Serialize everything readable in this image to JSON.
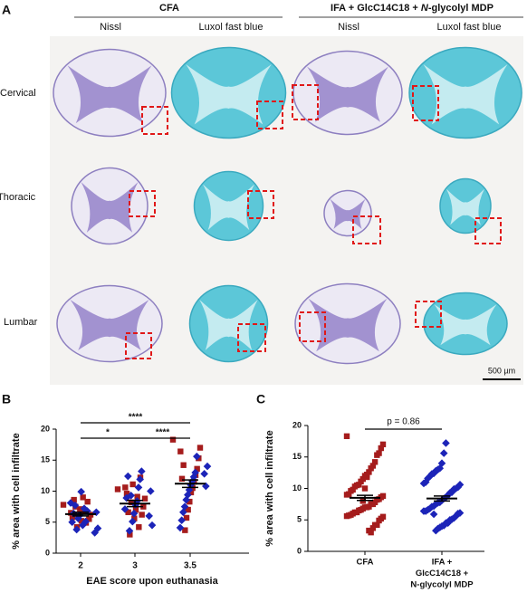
{
  "panel_labels": [
    "A",
    "B",
    "C"
  ],
  "panel_a": {
    "groups": [
      {
        "title": [
          "CFA"
        ]
      },
      {
        "title": [
          "IFA + GlcC14C18 + ",
          "N",
          "-glycolyl MDP"
        ]
      }
    ],
    "columns": [
      "Nissl",
      "Luxol fast blue",
      "Nissl",
      "Luxol fast blue"
    ],
    "rows": [
      "Cervical",
      "Thoracic",
      "Lumbar"
    ],
    "scale_bar": "500 µm"
  },
  "chart_data": [
    {
      "type": "strip",
      "ylabel": "% area with cell infiltrate",
      "xlabel": "EAE score upon euthanasia",
      "categories": [
        "2",
        "3",
        "3.5"
      ],
      "ylim": [
        0,
        20
      ],
      "yticks": [
        0,
        5,
        10,
        15,
        20
      ],
      "series": [
        {
          "color": "#a51c1c",
          "marker": "square",
          "values": [
            [
              7.8,
              6.2,
              5.5,
              8.3,
              4.9,
              6.8,
              9.0,
              5.2,
              7.1,
              6.0,
              4.2,
              7.5,
              8.6,
              5.8,
              6.5
            ],
            [
              10.3,
              8.8,
              7.5,
              6.2,
              12.2,
              4.2,
              9.1,
              7.0,
              5.6,
              11.1,
              8.2,
              3.0,
              6.6,
              9.6,
              10.6
            ],
            [
              18.3,
              17.0,
              15.3,
              13.6,
              12.6,
              11.5,
              10.5,
              9.8,
              8.3,
              7.0,
              5.7,
              3.7,
              14.2,
              12.0,
              16.4
            ]
          ]
        },
        {
          "color": "#1c24b8",
          "marker": "diamond",
          "values": [
            [
              6.8,
              5.1,
              7.2,
              4.5,
              9.9,
              6.1,
              5.6,
              3.8,
              7.7,
              6.4,
              5.0,
              8.1,
              4.0,
              6.6,
              3.3
            ],
            [
              13.2,
              11.9,
              10.6,
              8.4,
              7.8,
              6.4,
              5.1,
              9.3,
              3.6,
              12.4,
              8.9,
              7.1,
              4.5,
              10.0,
              6.0
            ],
            [
              15.6,
              13.0,
              12.3,
              11.6,
              11.0,
              10.2,
              9.4,
              8.6,
              7.5,
              6.6,
              5.3,
              4.1,
              14.0,
              10.8,
              12.8
            ]
          ]
        }
      ],
      "means": [
        6.3,
        8.0,
        11.2
      ],
      "sem": [
        0.3,
        0.5,
        0.6
      ],
      "annotations": [
        "*",
        "****",
        "****"
      ]
    },
    {
      "type": "strip",
      "ylabel": "% area with cell infiltrate",
      "categories": [
        [
          "CFA"
        ],
        [
          "IFA +",
          "GlcC14C18 +",
          "N-glycolyl MDP"
        ]
      ],
      "ylim": [
        0,
        20
      ],
      "yticks": [
        0,
        5,
        10,
        15,
        20
      ],
      "series": [
        {
          "color": "#a51c1c",
          "marker": "square",
          "values": [
            [
              18.3,
              17.0,
              16.4,
              15.6,
              15.3,
              14.2,
              13.6,
              13.2,
              12.6,
              12.2,
              12.0,
              11.5,
              11.1,
              10.6,
              10.5,
              10.3,
              9.8,
              9.6,
              9.1,
              9.0,
              8.8,
              8.6,
              8.3,
              8.2,
              7.8,
              7.5,
              7.5,
              7.1,
              7.0,
              7.0,
              6.8,
              6.6,
              6.5,
              6.2,
              6.2,
              6.0,
              5.8,
              5.7,
              5.6,
              5.5,
              5.2,
              4.9,
              4.2,
              4.2,
              3.7,
              3.0,
              3.3,
              11.8,
              10.0,
              8.0
            ],
            []
          ]
        },
        {
          "color": "#1c24b8",
          "marker": "diamond",
          "values": [
            [],
            [
              17.2,
              15.6,
              14.0,
              13.2,
              13.0,
              12.8,
              12.4,
              12.3,
              11.9,
              11.6,
              11.0,
              10.8,
              10.6,
              10.2,
              10.0,
              9.9,
              9.4,
              9.3,
              8.9,
              8.6,
              8.4,
              8.1,
              7.8,
              7.7,
              7.5,
              7.2,
              7.1,
              6.8,
              6.6,
              6.4,
              6.4,
              6.1,
              6.0,
              5.6,
              5.3,
              5.1,
              5.0,
              4.5,
              4.5,
              4.1,
              4.0,
              3.8,
              3.6,
              3.3,
              5.9
            ]
          ]
        }
      ],
      "means": [
        8.5,
        8.4
      ],
      "sem": [
        0.4,
        0.4
      ],
      "annotations": [
        "p = 0.86"
      ]
    }
  ]
}
